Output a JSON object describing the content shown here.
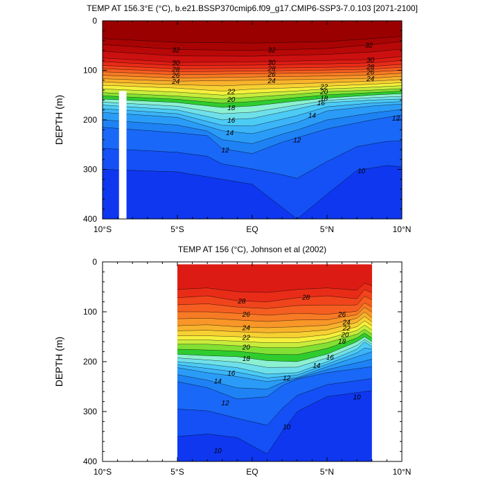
{
  "chart_data": [
    {
      "type": "heatmap",
      "title": "TEMP AT 156.3°E (°C), b.e21.BSSP370cmip6.f09_g17.CMIP6-SSP3-7.0.103 [2071-2100]",
      "ylabel": "DEPTH (m)",
      "xlabel": "",
      "xlim": [
        -10,
        10
      ],
      "ylim": [
        400,
        0
      ],
      "x_ticks": [
        -10,
        -5,
        0,
        5,
        10
      ],
      "x_tick_labels": [
        "10°S",
        "5°S",
        "EQ",
        "5°N",
        "10°N"
      ],
      "y_ticks": [
        0,
        100,
        200,
        300,
        400
      ],
      "y_tick_labels": [
        "0",
        "100",
        "200",
        "300",
        "400"
      ],
      "data_xrange": [
        -10,
        10
      ],
      "data_yrange": [
        0,
        400
      ],
      "missing_region": {
        "x": [
          -8.9,
          -8.4
        ],
        "y": [
          142,
          400
        ]
      },
      "isotherms": [
        {
          "t": 32,
          "x": [
            -10,
            -5,
            0,
            5,
            8,
            10
          ],
          "y": [
            48,
            58,
            60,
            56,
            48,
            42
          ]
        },
        {
          "t": 30,
          "x": [
            -10,
            -5,
            0,
            5,
            8,
            10
          ],
          "y": [
            75,
            84,
            83,
            80,
            78,
            72
          ]
        },
        {
          "t": 28,
          "x": [
            -10,
            -5,
            0,
            5,
            8,
            10
          ],
          "y": [
            90,
            97,
            96,
            94,
            92,
            88
          ]
        },
        {
          "t": 26,
          "x": [
            -10,
            -5,
            0,
            5,
            8,
            10
          ],
          "y": [
            103,
            109,
            107,
            105,
            103,
            100
          ]
        },
        {
          "t": 24,
          "x": [
            -10,
            -5,
            0,
            5,
            8,
            10
          ],
          "y": [
            117,
            122,
            120,
            118,
            116,
            112
          ]
        },
        {
          "t": 22,
          "x": [
            -10,
            -5,
            -2,
            0,
            3,
            5,
            8,
            10
          ],
          "y": [
            130,
            136,
            142,
            138,
            135,
            132,
            128,
            125
          ]
        },
        {
          "t": 20,
          "x": [
            -10,
            -5,
            -2,
            0,
            3,
            5,
            8,
            10
          ],
          "y": [
            145,
            152,
            158,
            154,
            148,
            143,
            140,
            137
          ]
        },
        {
          "t": 18,
          "x": [
            -10,
            -5,
            -2,
            0,
            3,
            5,
            8,
            10
          ],
          "y": [
            158,
            165,
            175,
            172,
            162,
            156,
            150,
            147
          ]
        },
        {
          "t": 16,
          "x": [
            -10,
            -5,
            -2,
            0,
            3,
            5,
            8,
            10
          ],
          "y": [
            170,
            180,
            200,
            197,
            178,
            165,
            160,
            158
          ]
        },
        {
          "t": 14,
          "x": [
            -10,
            -5,
            -2,
            0,
            3,
            5,
            8,
            10
          ],
          "y": [
            185,
            195,
            222,
            228,
            205,
            182,
            172,
            168
          ]
        },
        {
          "t": 12,
          "x": [
            -10,
            -5,
            -3,
            -2,
            0,
            2,
            5,
            8,
            10
          ],
          "y": [
            215,
            226,
            232,
            258,
            268,
            245,
            218,
            200,
            190
          ]
        },
        {
          "t": 10,
          "x": [
            -10,
            -5,
            0,
            3,
            5,
            7,
            9,
            10
          ],
          "y": [
            300,
            305,
            330,
            400,
            350,
            302,
            292,
            295
          ]
        }
      ],
      "contour_labels": [
        {
          "text": "32",
          "x": -5.1,
          "y": 58
        },
        {
          "text": "32",
          "x": 1.3,
          "y": 58
        },
        {
          "text": "32",
          "x": 7.8,
          "y": 48
        },
        {
          "text": "30",
          "x": -5.1,
          "y": 84
        },
        {
          "text": "30",
          "x": 1.3,
          "y": 83
        },
        {
          "text": "30",
          "x": 7.9,
          "y": 78
        },
        {
          "text": "28",
          "x": -5.1,
          "y": 97
        },
        {
          "text": "28",
          "x": 1.3,
          "y": 96
        },
        {
          "text": "28",
          "x": 7.9,
          "y": 92
        },
        {
          "text": "26",
          "x": -5.1,
          "y": 109
        },
        {
          "text": "26",
          "x": 1.3,
          "y": 107
        },
        {
          "text": "26",
          "x": 7.9,
          "y": 103
        },
        {
          "text": "24",
          "x": -5.1,
          "y": 122
        },
        {
          "text": "24",
          "x": 1.3,
          "y": 120
        },
        {
          "text": "24",
          "x": 7.9,
          "y": 116
        },
        {
          "text": "22",
          "x": -1.4,
          "y": 142
        },
        {
          "text": "22",
          "x": 4.8,
          "y": 132
        },
        {
          "text": "20",
          "x": -1.4,
          "y": 158
        },
        {
          "text": "20",
          "x": 4.8,
          "y": 143
        },
        {
          "text": "18",
          "x": -1.4,
          "y": 175
        },
        {
          "text": "18",
          "x": 4.8,
          "y": 156
        },
        {
          "text": "16",
          "x": -1.4,
          "y": 200
        },
        {
          "text": "16",
          "x": 4.6,
          "y": 165
        },
        {
          "text": "14",
          "x": -1.5,
          "y": 225
        },
        {
          "text": "14",
          "x": 4.0,
          "y": 190
        },
        {
          "text": "12",
          "x": 3.0,
          "y": 240
        },
        {
          "text": "12",
          "x": 9.6,
          "y": 196
        },
        {
          "text": "12",
          "x": -1.8,
          "y": 260
        },
        {
          "text": "10",
          "x": 7.3,
          "y": 302
        }
      ]
    },
    {
      "type": "heatmap",
      "title": "TEMP AT 156 (°C), Johnson et al (2002)",
      "ylabel": "DEPTH (m)",
      "xlabel": "",
      "xlim": [
        -10,
        10
      ],
      "ylim": [
        400,
        0
      ],
      "x_ticks": [
        -10,
        -5,
        0,
        5,
        10
      ],
      "x_tick_labels": [
        "10°S",
        "5°S",
        "EQ",
        "5°N",
        "10°N"
      ],
      "y_ticks": [
        0,
        100,
        200,
        300,
        400
      ],
      "y_tick_labels": [
        "0",
        "100",
        "200",
        "300",
        "400"
      ],
      "data_xrange": [
        -5,
        8
      ],
      "data_yrange": [
        5,
        400
      ],
      "isotherms": [
        {
          "t": 28,
          "x": [
            -5,
            -3,
            -1,
            1,
            3,
            5,
            7,
            7.5,
            8
          ],
          "y": [
            72,
            68,
            78,
            80,
            72,
            68,
            74,
            55,
            62
          ]
        },
        {
          "t": 26,
          "x": [
            -5,
            -3,
            -1,
            1,
            3,
            5,
            7,
            7.5,
            8
          ],
          "y": [
            100,
            100,
            103,
            107,
            103,
            105,
            99,
            82,
            90
          ]
        },
        {
          "t": 24,
          "x": [
            -5,
            -3,
            -1,
            1,
            3,
            5,
            7,
            7.5,
            8
          ],
          "y": [
            128,
            126,
            130,
            132,
            130,
            127,
            113,
            100,
            112
          ]
        },
        {
          "t": 22,
          "x": [
            -5,
            -3,
            -1,
            1,
            3,
            5,
            7,
            7.5,
            8
          ],
          "y": [
            148,
            148,
            150,
            152,
            152,
            146,
            130,
            118,
            128
          ]
        },
        {
          "t": 20,
          "x": [
            -5,
            -3,
            -1,
            1,
            3,
            5,
            7,
            7.5,
            8
          ],
          "y": [
            165,
            165,
            168,
            172,
            172,
            162,
            145,
            135,
            145
          ]
        },
        {
          "t": 18,
          "x": [
            -5,
            -3,
            -1,
            1,
            3,
            5,
            7,
            7.5,
            8
          ],
          "y": [
            185,
            188,
            190,
            198,
            200,
            185,
            160,
            150,
            160
          ]
        },
        {
          "t": 16,
          "x": [
            -5,
            -3,
            -1,
            1,
            3,
            5,
            7,
            7.5,
            8
          ],
          "y": [
            200,
            205,
            212,
            225,
            222,
            200,
            175,
            160,
            170
          ]
        },
        {
          "t": 14,
          "x": [
            -5,
            -3,
            -1,
            1,
            3,
            5,
            7,
            8
          ],
          "y": [
            212,
            222,
            230,
            240,
            232,
            210,
            190,
            180
          ]
        },
        {
          "t": 12,
          "x": [
            -5,
            -3,
            -1,
            1,
            2,
            3,
            5,
            8
          ],
          "y": [
            240,
            252,
            275,
            270,
            248,
            235,
            222,
            210
          ]
        },
        {
          "t": 10,
          "x": [
            -5,
            -3,
            -1,
            1,
            2,
            3,
            5,
            7,
            8
          ],
          "y": [
            350,
            345,
            352,
            385,
            340,
            300,
            270,
            262,
            258
          ]
        }
      ],
      "contour_labels": [
        {
          "text": "28",
          "x": -0.7,
          "y": 78
        },
        {
          "text": "28",
          "x": 3.6,
          "y": 70
        },
        {
          "text": "26",
          "x": -0.4,
          "y": 104
        },
        {
          "text": "26",
          "x": 6.0,
          "y": 104
        },
        {
          "text": "24",
          "x": -0.4,
          "y": 131
        },
        {
          "text": "24",
          "x": 6.3,
          "y": 120
        },
        {
          "text": "22",
          "x": -0.4,
          "y": 151
        },
        {
          "text": "22",
          "x": 6.3,
          "y": 132
        },
        {
          "text": "20",
          "x": -0.4,
          "y": 170
        },
        {
          "text": "20",
          "x": 6.2,
          "y": 145
        },
        {
          "text": "18",
          "x": -0.4,
          "y": 193
        },
        {
          "text": "18",
          "x": 6.0,
          "y": 158
        },
        {
          "text": "16",
          "x": -1.4,
          "y": 222
        },
        {
          "text": "16",
          "x": 5.2,
          "y": 190
        },
        {
          "text": "14",
          "x": -2.3,
          "y": 238
        },
        {
          "text": "14",
          "x": 4.3,
          "y": 207
        },
        {
          "text": "12",
          "x": -1.8,
          "y": 282
        },
        {
          "text": "12",
          "x": 2.3,
          "y": 232
        },
        {
          "text": "10",
          "x": 2.3,
          "y": 330
        },
        {
          "text": "10",
          "x": -2.3,
          "y": 378
        },
        {
          "text": "10",
          "x": 7.0,
          "y": 270
        }
      ]
    }
  ]
}
